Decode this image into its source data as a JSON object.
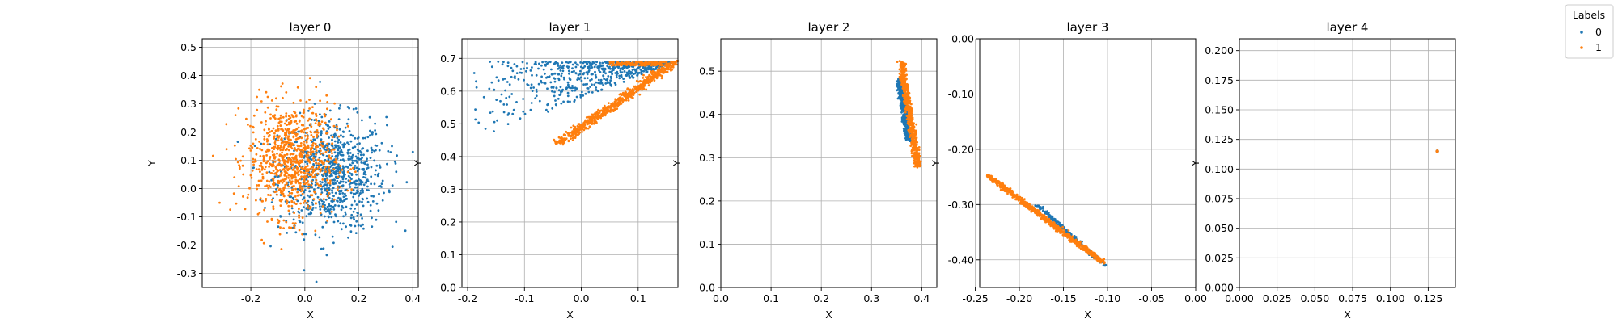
{
  "legend": {
    "title": "Labels",
    "placement": "upper-right outside",
    "entries": [
      {
        "label": "0",
        "color": "#1f77b4"
      },
      {
        "label": "1",
        "color": "#ff7f0e"
      }
    ]
  },
  "chart_data": [
    {
      "type": "scatter",
      "title": "layer 0",
      "xlabel": "X",
      "ylabel": "Y",
      "xlim": [
        -0.38,
        0.42
      ],
      "ylim": [
        -0.35,
        0.53
      ],
      "xticks": [
        -0.2,
        0.0,
        0.2,
        0.4
      ],
      "yticks": [
        -0.3,
        -0.2,
        -0.1,
        0.0,
        0.1,
        0.2,
        0.3,
        0.4,
        0.5
      ],
      "tick_decimals": 1,
      "grid": true,
      "series": [
        {
          "name": "0",
          "color": "#1f77b4",
          "n": 850,
          "distribution": "gaussian",
          "center": [
            0.1,
            0.05
          ],
          "spread": [
            0.1,
            0.1
          ],
          "x_range": [
            -0.35,
            0.4
          ],
          "y_range": [
            -0.33,
            0.46
          ]
        },
        {
          "name": "1",
          "color": "#ff7f0e",
          "n": 850,
          "distribution": "gaussian",
          "center": [
            -0.05,
            0.1
          ],
          "spread": [
            0.08,
            0.1
          ],
          "x_range": [
            -0.34,
            0.2
          ],
          "y_range": [
            -0.26,
            0.47
          ]
        }
      ]
    },
    {
      "type": "scatter",
      "title": "layer 1",
      "xlabel": "X",
      "ylabel": "Y",
      "xlim": [
        -0.21,
        0.17
      ],
      "ylim": [
        0.0,
        0.76
      ],
      "xticks": [
        -0.2,
        -0.1,
        0.0,
        0.1
      ],
      "yticks": [
        0.0,
        0.1,
        0.2,
        0.3,
        0.4,
        0.5,
        0.6,
        0.7
      ],
      "tick_decimals": 1,
      "grid": true,
      "series": [
        {
          "name": "0",
          "color": "#1f77b4",
          "n": 700,
          "distribution": "wedge",
          "apex": [
            0.165,
            0.69
          ],
          "x_range": [
            -0.2,
            0.165
          ],
          "y_max": 0.69,
          "y_min_at_left": 0.44,
          "density": "right-heavy"
        },
        {
          "name": "1",
          "color": "#ff7f0e",
          "n": 650,
          "distribution": "segment-band",
          "from": [
            -0.04,
            0.44
          ],
          "to": [
            0.165,
            0.69
          ],
          "band_width": 0.012,
          "plus_top_band_from_x": 0.05
        }
      ]
    },
    {
      "type": "scatter",
      "title": "layer 2",
      "xlabel": "X",
      "ylabel": "Y",
      "xlim": [
        0.0,
        0.43
      ],
      "ylim": [
        0.0,
        0.575
      ],
      "xticks": [
        0.0,
        0.1,
        0.2,
        0.3,
        0.4
      ],
      "yticks": [
        0.0,
        0.1,
        0.2,
        0.3,
        0.4,
        0.5
      ],
      "tick_decimals": 1,
      "grid": true,
      "series": [
        {
          "name": "0",
          "color": "#1f77b4",
          "n": 500,
          "distribution": "segment-band",
          "from": [
            0.355,
            0.48
          ],
          "to": [
            0.375,
            0.34
          ],
          "band_width": 0.006
        },
        {
          "name": "1",
          "color": "#ff7f0e",
          "n": 600,
          "distribution": "segment-band",
          "from": [
            0.36,
            0.52
          ],
          "to": [
            0.392,
            0.28
          ],
          "band_width": 0.007
        }
      ]
    },
    {
      "type": "scatter",
      "title": "layer 3",
      "xlabel": "X",
      "ylabel": "Y",
      "xlim": [
        -0.245,
        0.0
      ],
      "ylim": [
        -0.45,
        0.0
      ],
      "xticks": [
        -0.25,
        -0.2,
        -0.15,
        -0.1,
        -0.05,
        0.0
      ],
      "yticks": [
        -0.4,
        -0.3,
        -0.2,
        -0.1,
        0.0
      ],
      "tick_decimals": 2,
      "grid": true,
      "series": [
        {
          "name": "0",
          "color": "#1f77b4",
          "n": 200,
          "distribution": "segment-band",
          "from": [
            -0.18,
            -0.3
          ],
          "to": [
            -0.103,
            -0.41
          ],
          "band_width": 0.003
        },
        {
          "name": "1",
          "color": "#ff7f0e",
          "n": 700,
          "distribution": "segment-band",
          "from": [
            -0.235,
            -0.248
          ],
          "to": [
            -0.105,
            -0.405
          ],
          "band_width": 0.004
        }
      ]
    },
    {
      "type": "scatter",
      "title": "layer 4",
      "xlabel": "X",
      "ylabel": "Y",
      "xlim": [
        0.0,
        0.143
      ],
      "ylim": [
        0.0,
        0.21
      ],
      "xticks": [
        0.0,
        0.025,
        0.05,
        0.075,
        0.1,
        0.125
      ],
      "yticks": [
        0.0,
        0.025,
        0.05,
        0.075,
        0.1,
        0.125,
        0.15,
        0.175,
        0.2
      ],
      "tick_decimals": 3,
      "grid": true,
      "series": [
        {
          "name": "0",
          "color": "#1f77b4",
          "n": 1,
          "distribution": "points",
          "points": [
            [
              0.131,
              0.115
            ]
          ]
        },
        {
          "name": "1",
          "color": "#ff7f0e",
          "n": 1,
          "distribution": "points",
          "points": [
            [
              0.131,
              0.115
            ]
          ]
        }
      ]
    }
  ]
}
